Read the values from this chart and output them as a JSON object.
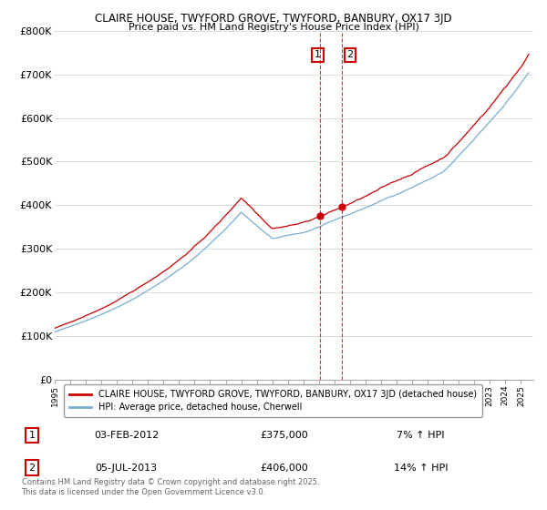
{
  "title1": "CLAIRE HOUSE, TWYFORD GROVE, TWYFORD, BANBURY, OX17 3JD",
  "title2": "Price paid vs. HM Land Registry's House Price Index (HPI)",
  "legend_red": "CLAIRE HOUSE, TWYFORD GROVE, TWYFORD, BANBURY, OX17 3JD (detached house)",
  "legend_blue": "HPI: Average price, detached house, Cherwell",
  "transaction1_num": "1",
  "transaction1_date": "03-FEB-2012",
  "transaction1_price": "£375,000",
  "transaction1_hpi": "7% ↑ HPI",
  "transaction2_num": "2",
  "transaction2_date": "05-JUL-2013",
  "transaction2_price": "£406,000",
  "transaction2_hpi": "14% ↑ HPI",
  "copyright": "Contains HM Land Registry data © Crown copyright and database right 2025.\nThis data is licensed under the Open Government Licence v3.0.",
  "red_color": "#cc0000",
  "blue_color": "#7aadcf",
  "vline1_color": "#cc0000",
  "vline2_color": "#cc0000",
  "background_color": "#ffffff",
  "grid_color": "#dddddd",
  "ylim": [
    0,
    800000
  ],
  "yticks": [
    0,
    100000,
    200000,
    300000,
    400000,
    500000,
    600000,
    700000,
    800000
  ],
  "x_start_year": 1995,
  "x_end_year": 2025,
  "transaction1_year": 2012.08,
  "transaction2_year": 2013.5,
  "seed": 42
}
